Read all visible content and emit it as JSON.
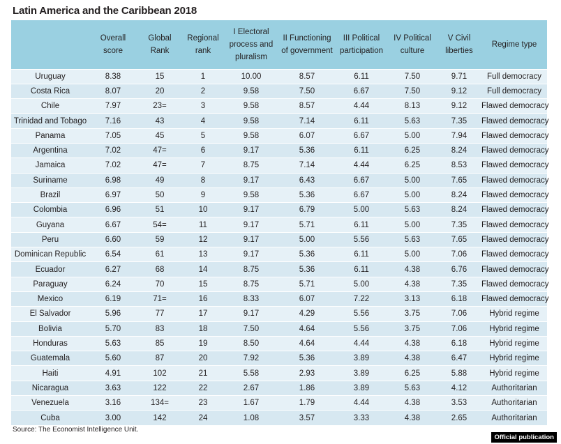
{
  "title": "Latin America and the Caribbean 2018",
  "columns": [
    "",
    "Overall score",
    "Global Rank",
    "Regional rank",
    "I Electoral process and pluralism",
    "II Functioning of government",
    "III Political participation",
    "IV Political culture",
    "V Civil liberties",
    "Regime type"
  ],
  "rows": [
    [
      "Uruguay",
      "8.38",
      "15",
      "1",
      "10.00",
      "8.57",
      "6.11",
      "7.50",
      "9.71",
      "Full democracy"
    ],
    [
      "Costa Rica",
      "8.07",
      "20",
      "2",
      "9.58",
      "7.50",
      "6.67",
      "7.50",
      "9.12",
      "Full democracy"
    ],
    [
      "Chile",
      "7.97",
      "23=",
      "3",
      "9.58",
      "8.57",
      "4.44",
      "8.13",
      "9.12",
      "Flawed democracy"
    ],
    [
      "Trinidad and Tobago",
      "7.16",
      "43",
      "4",
      "9.58",
      "7.14",
      "6.11",
      "5.63",
      "7.35",
      "Flawed democracy"
    ],
    [
      "Panama",
      "7.05",
      "45",
      "5",
      "9.58",
      "6.07",
      "6.67",
      "5.00",
      "7.94",
      "Flawed democracy"
    ],
    [
      "Argentina",
      "7.02",
      "47=",
      "6",
      "9.17",
      "5.36",
      "6.11",
      "6.25",
      "8.24",
      "Flawed democracy"
    ],
    [
      "Jamaica",
      "7.02",
      "47=",
      "7",
      "8.75",
      "7.14",
      "4.44",
      "6.25",
      "8.53",
      "Flawed democracy"
    ],
    [
      "Suriname",
      "6.98",
      "49",
      "8",
      "9.17",
      "6.43",
      "6.67",
      "5.00",
      "7.65",
      "Flawed democracy"
    ],
    [
      "Brazil",
      "6.97",
      "50",
      "9",
      "9.58",
      "5.36",
      "6.67",
      "5.00",
      "8.24",
      "Flawed democracy"
    ],
    [
      "Colombia",
      "6.96",
      "51",
      "10",
      "9.17",
      "6.79",
      "5.00",
      "5.63",
      "8.24",
      "Flawed democracy"
    ],
    [
      "Guyana",
      "6.67",
      "54=",
      "11",
      "9.17",
      "5.71",
      "6.11",
      "5.00",
      "7.35",
      "Flawed democracy"
    ],
    [
      "Peru",
      "6.60",
      "59",
      "12",
      "9.17",
      "5.00",
      "5.56",
      "5.63",
      "7.65",
      "Flawed democracy"
    ],
    [
      "Dominican Republic",
      "6.54",
      "61",
      "13",
      "9.17",
      "5.36",
      "6.11",
      "5.00",
      "7.06",
      "Flawed democracy"
    ],
    [
      "Ecuador",
      "6.27",
      "68",
      "14",
      "8.75",
      "5.36",
      "6.11",
      "4.38",
      "6.76",
      "Flawed democracy"
    ],
    [
      "Paraguay",
      "6.24",
      "70",
      "15",
      "8.75",
      "5.71",
      "5.00",
      "4.38",
      "7.35",
      "Flawed democracy"
    ],
    [
      "Mexico",
      "6.19",
      "71=",
      "16",
      "8.33",
      "6.07",
      "7.22",
      "3.13",
      "6.18",
      "Flawed democracy"
    ],
    [
      "El Salvador",
      "5.96",
      "77",
      "17",
      "9.17",
      "4.29",
      "5.56",
      "3.75",
      "7.06",
      "Hybrid regime"
    ],
    [
      "Bolivia",
      "5.70",
      "83",
      "18",
      "7.50",
      "4.64",
      "5.56",
      "3.75",
      "7.06",
      "Hybrid regime"
    ],
    [
      "Honduras",
      "5.63",
      "85",
      "19",
      "8.50",
      "4.64",
      "4.44",
      "4.38",
      "6.18",
      "Hybrid regime"
    ],
    [
      "Guatemala",
      "5.60",
      "87",
      "20",
      "7.92",
      "5.36",
      "3.89",
      "4.38",
      "6.47",
      "Hybrid regime"
    ],
    [
      "Haiti",
      "4.91",
      "102",
      "21",
      "5.58",
      "2.93",
      "3.89",
      "6.25",
      "5.88",
      "Hybrid regime"
    ],
    [
      "Nicaragua",
      "3.63",
      "122",
      "22",
      "2.67",
      "1.86",
      "3.89",
      "5.63",
      "4.12",
      "Authoritarian"
    ],
    [
      "Venezuela",
      "3.16",
      "134=",
      "23",
      "1.67",
      "1.79",
      "4.44",
      "4.38",
      "3.53",
      "Authoritarian"
    ],
    [
      "Cuba",
      "3.00",
      "142",
      "24",
      "1.08",
      "3.57",
      "3.33",
      "4.38",
      "2.65",
      "Authoritarian"
    ]
  ],
  "source": "Source: The Economist Intelligence Unit.",
  "badge": "Official publication"
}
